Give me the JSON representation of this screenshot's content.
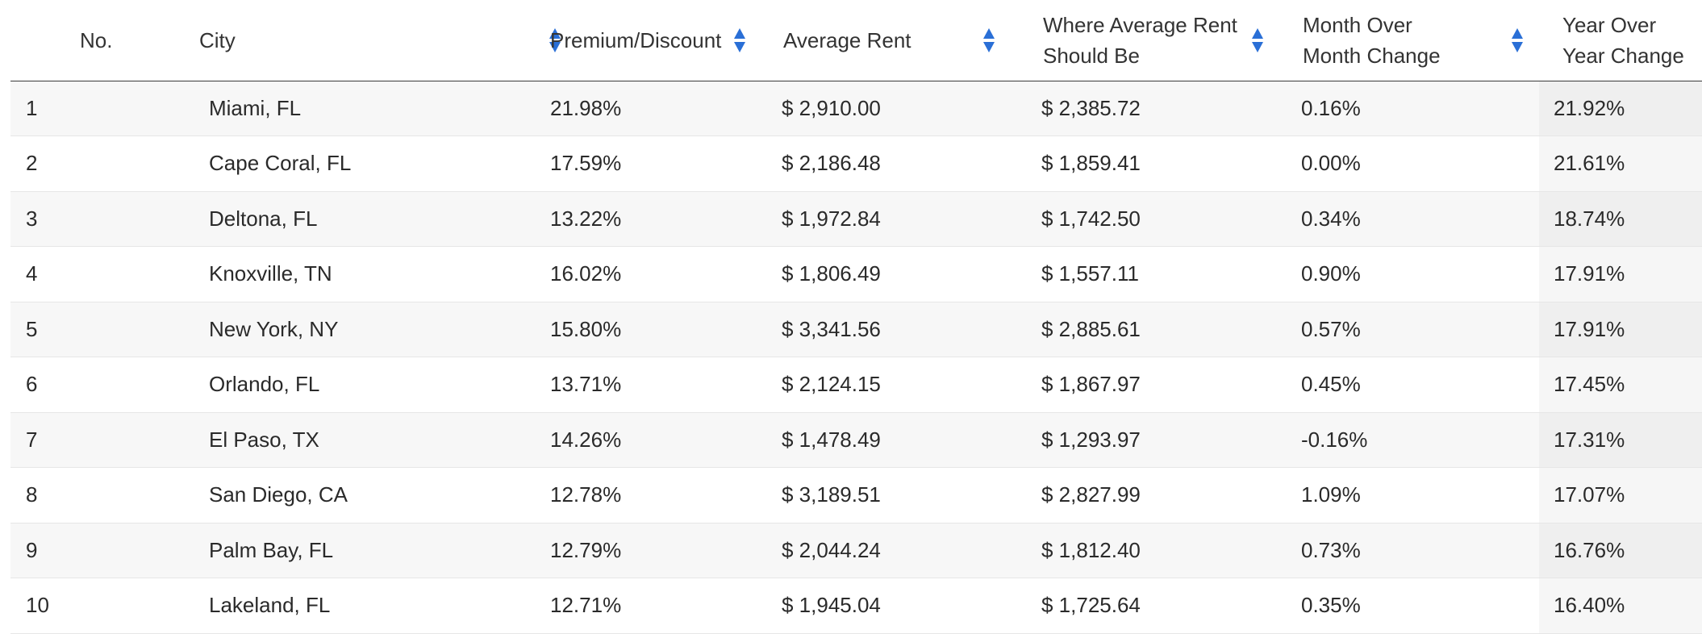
{
  "table": {
    "headers": [
      {
        "label": "No.",
        "lines": [
          "No."
        ],
        "sortable": false
      },
      {
        "label": "City",
        "lines": [
          "City"
        ],
        "sortable": true
      },
      {
        "label": "Premium/Discount",
        "lines": [
          "Premium/Discount"
        ],
        "sortable": true
      },
      {
        "label": "Average Rent",
        "lines": [
          "Average Rent"
        ],
        "sortable": true
      },
      {
        "label": "Where Average Rent Should Be",
        "lines": [
          "Where Average Rent",
          "Should Be"
        ],
        "sortable": true
      },
      {
        "label": "Month Over Month Change",
        "lines": [
          "Month Over",
          "Month Change"
        ],
        "sortable": true
      },
      {
        "label": "Year Over Year Change",
        "lines": [
          "Year Over",
          "Year Change"
        ],
        "sortable": false
      }
    ],
    "rows": [
      [
        "1",
        "Miami, FL",
        "21.98%",
        "$ 2,910.00",
        "$ 2,385.72",
        "0.16%",
        "21.92%"
      ],
      [
        "2",
        "Cape Coral, FL",
        "17.59%",
        "$ 2,186.48",
        "$ 1,859.41",
        "0.00%",
        "21.61%"
      ],
      [
        "3",
        "Deltona, FL",
        "13.22%",
        "$ 1,972.84",
        "$ 1,742.50",
        "0.34%",
        "18.74%"
      ],
      [
        "4",
        "Knoxville, TN",
        "16.02%",
        "$ 1,806.49",
        "$ 1,557.11",
        "0.90%",
        "17.91%"
      ],
      [
        "5",
        "New York, NY",
        "15.80%",
        "$ 3,341.56",
        "$ 2,885.61",
        "0.57%",
        "17.91%"
      ],
      [
        "6",
        "Orlando, FL",
        "13.71%",
        "$ 2,124.15",
        "$ 1,867.97",
        "0.45%",
        "17.45%"
      ],
      [
        "7",
        "El Paso, TX",
        "14.26%",
        "$ 1,478.49",
        "$ 1,293.97",
        "-0.16%",
        "17.31%"
      ],
      [
        "8",
        "San Diego, CA",
        "12.78%",
        "$ 3,189.51",
        "$ 2,827.99",
        "1.09%",
        "17.07%"
      ],
      [
        "9",
        "Palm Bay, FL",
        "12.79%",
        "$ 2,044.24",
        "$ 1,812.40",
        "0.73%",
        "16.76%"
      ],
      [
        "10",
        "Lakeland, FL",
        "12.71%",
        "$ 1,945.04",
        "$ 1,725.64",
        "0.35%",
        "16.40%"
      ]
    ]
  },
  "colors": {
    "sort_icon": "#2a6fd6",
    "header_border": "#3a3a3a",
    "row_odd": "#f7f7f7",
    "row_even": "#ffffff",
    "sorted_column": "#efefef"
  },
  "icons": {
    "sort": "sort-up-down-icon"
  }
}
